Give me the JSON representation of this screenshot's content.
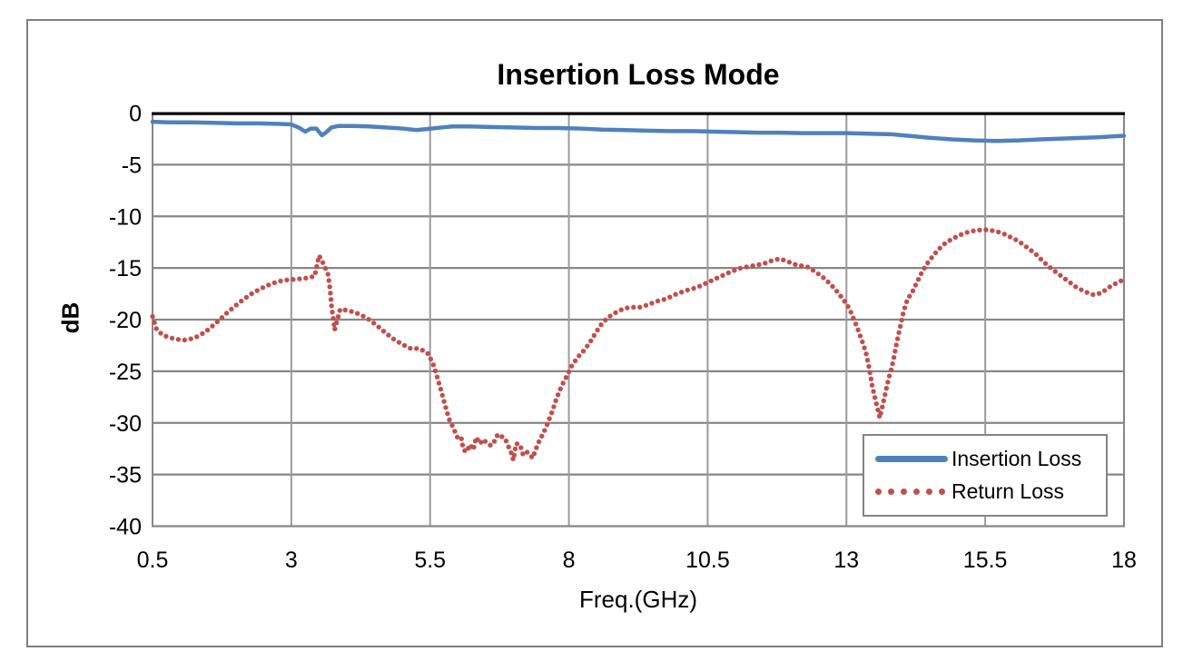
{
  "figure": {
    "background": "#ffffff",
    "frame_border_color": "#7f7f7f"
  },
  "chart_data": {
    "type": "line",
    "title": "Insertion Loss Mode",
    "xlabel": "Freq.(GHz)",
    "ylabel": "dB",
    "xlim": [
      0.5,
      18
    ],
    "ylim": [
      -40,
      0
    ],
    "x_ticks": [
      0.5,
      3,
      5.5,
      8,
      10.5,
      13,
      15.5,
      18
    ],
    "y_ticks": [
      0,
      -5,
      -10,
      -15,
      -20,
      -25,
      -30,
      -35,
      -40
    ],
    "grid": true,
    "legend_position": "bottom-right",
    "colors": {
      "gridline": "#878787",
      "vertical_gridline": "#9b9b9b",
      "plot_border": "#878787",
      "zero_axis": "#000000"
    },
    "series": [
      {
        "name": "Insertion Loss",
        "style": "solid",
        "color": "#4F81BD",
        "points": [
          [
            0.5,
            -0.85
          ],
          [
            0.8,
            -0.9
          ],
          [
            1.2,
            -0.9
          ],
          [
            1.6,
            -0.95
          ],
          [
            2.0,
            -1.0
          ],
          [
            2.4,
            -1.0
          ],
          [
            2.8,
            -1.05
          ],
          [
            3.0,
            -1.1
          ],
          [
            3.15,
            -1.45
          ],
          [
            3.25,
            -1.8
          ],
          [
            3.35,
            -1.5
          ],
          [
            3.45,
            -1.5
          ],
          [
            3.55,
            -2.15
          ],
          [
            3.62,
            -1.9
          ],
          [
            3.72,
            -1.4
          ],
          [
            3.85,
            -1.25
          ],
          [
            4.1,
            -1.25
          ],
          [
            4.4,
            -1.3
          ],
          [
            4.7,
            -1.4
          ],
          [
            5.0,
            -1.5
          ],
          [
            5.25,
            -1.65
          ],
          [
            5.45,
            -1.55
          ],
          [
            5.7,
            -1.4
          ],
          [
            5.9,
            -1.3
          ],
          [
            6.2,
            -1.3
          ],
          [
            6.6,
            -1.35
          ],
          [
            7.0,
            -1.4
          ],
          [
            7.4,
            -1.45
          ],
          [
            7.8,
            -1.45
          ],
          [
            8.2,
            -1.5
          ],
          [
            8.6,
            -1.6
          ],
          [
            9.0,
            -1.65
          ],
          [
            9.4,
            -1.7
          ],
          [
            9.8,
            -1.75
          ],
          [
            10.2,
            -1.75
          ],
          [
            10.6,
            -1.8
          ],
          [
            11.0,
            -1.85
          ],
          [
            11.4,
            -1.9
          ],
          [
            11.8,
            -1.9
          ],
          [
            12.2,
            -1.95
          ],
          [
            12.6,
            -1.95
          ],
          [
            13.0,
            -1.95
          ],
          [
            13.4,
            -2.0
          ],
          [
            13.8,
            -2.05
          ],
          [
            14.1,
            -2.2
          ],
          [
            14.5,
            -2.4
          ],
          [
            14.9,
            -2.55
          ],
          [
            15.3,
            -2.65
          ],
          [
            15.7,
            -2.7
          ],
          [
            16.1,
            -2.65
          ],
          [
            16.5,
            -2.55
          ],
          [
            17.0,
            -2.45
          ],
          [
            17.5,
            -2.35
          ],
          [
            18.0,
            -2.2
          ]
        ]
      },
      {
        "name": "Return Loss",
        "style": "dotted",
        "color": "#C0504D",
        "points": [
          [
            0.5,
            -19.7
          ],
          [
            0.57,
            -20.9
          ],
          [
            0.68,
            -21.5
          ],
          [
            0.85,
            -21.8
          ],
          [
            1.05,
            -22.0
          ],
          [
            1.25,
            -21.8
          ],
          [
            1.45,
            -21.2
          ],
          [
            1.65,
            -20.3
          ],
          [
            1.85,
            -19.3
          ],
          [
            2.05,
            -18.4
          ],
          [
            2.25,
            -17.6
          ],
          [
            2.45,
            -17.0
          ],
          [
            2.65,
            -16.5
          ],
          [
            2.85,
            -16.2
          ],
          [
            3.05,
            -16.1
          ],
          [
            3.25,
            -16.0
          ],
          [
            3.42,
            -15.8
          ],
          [
            3.5,
            -13.8
          ],
          [
            3.58,
            -14.6
          ],
          [
            3.66,
            -15.6
          ],
          [
            3.69,
            -16.7
          ],
          [
            3.71,
            -17.8
          ],
          [
            3.73,
            -19.0
          ],
          [
            3.76,
            -20.0
          ],
          [
            3.78,
            -21.0
          ],
          [
            3.88,
            -19.0
          ],
          [
            4.0,
            -19.1
          ],
          [
            4.15,
            -19.3
          ],
          [
            4.35,
            -19.8
          ],
          [
            4.55,
            -20.6
          ],
          [
            4.7,
            -21.3
          ],
          [
            4.85,
            -21.9
          ],
          [
            5.0,
            -22.4
          ],
          [
            5.15,
            -22.8
          ],
          [
            5.3,
            -22.8
          ],
          [
            5.45,
            -23.2
          ],
          [
            5.55,
            -24.2
          ],
          [
            5.63,
            -25.6
          ],
          [
            5.7,
            -26.9
          ],
          [
            5.76,
            -28.1
          ],
          [
            5.84,
            -29.6
          ],
          [
            5.92,
            -30.5
          ],
          [
            6.0,
            -31.5
          ],
          [
            6.06,
            -31.4
          ],
          [
            6.1,
            -32.6
          ],
          [
            6.16,
            -32.8
          ],
          [
            6.22,
            -32.1
          ],
          [
            6.28,
            -32.6
          ],
          [
            6.33,
            -31.4
          ],
          [
            6.4,
            -32.0
          ],
          [
            6.46,
            -31.6
          ],
          [
            6.53,
            -32.0
          ],
          [
            6.6,
            -32.2
          ],
          [
            6.67,
            -31.7
          ],
          [
            6.72,
            -31.1
          ],
          [
            6.78,
            -31.3
          ],
          [
            6.85,
            -31.5
          ],
          [
            6.92,
            -32.4
          ],
          [
            6.97,
            -33.0
          ],
          [
            7.0,
            -33.6
          ],
          [
            7.05,
            -32.0
          ],
          [
            7.12,
            -32.1
          ],
          [
            7.17,
            -33.0
          ],
          [
            7.22,
            -32.7
          ],
          [
            7.28,
            -33.0
          ],
          [
            7.35,
            -33.4
          ],
          [
            7.4,
            -32.6
          ],
          [
            7.47,
            -31.7
          ],
          [
            7.54,
            -31.0
          ],
          [
            7.62,
            -30.0
          ],
          [
            7.7,
            -28.9
          ],
          [
            7.78,
            -27.6
          ],
          [
            7.87,
            -26.4
          ],
          [
            7.96,
            -25.5
          ],
          [
            8.05,
            -24.5
          ],
          [
            8.15,
            -23.7
          ],
          [
            8.27,
            -23.0
          ],
          [
            8.38,
            -22.2
          ],
          [
            8.48,
            -21.3
          ],
          [
            8.58,
            -20.5
          ],
          [
            8.7,
            -19.8
          ],
          [
            8.85,
            -19.3
          ],
          [
            9.0,
            -18.9
          ],
          [
            9.15,
            -18.8
          ],
          [
            9.3,
            -18.8
          ],
          [
            9.45,
            -18.5
          ],
          [
            9.6,
            -18.2
          ],
          [
            9.75,
            -18.0
          ],
          [
            9.9,
            -17.6
          ],
          [
            10.1,
            -17.2
          ],
          [
            10.3,
            -16.9
          ],
          [
            10.5,
            -16.4
          ],
          [
            10.7,
            -15.9
          ],
          [
            10.9,
            -15.4
          ],
          [
            11.1,
            -15.0
          ],
          [
            11.3,
            -14.8
          ],
          [
            11.5,
            -14.6
          ],
          [
            11.65,
            -14.3
          ],
          [
            11.8,
            -14.1
          ],
          [
            11.95,
            -14.4
          ],
          [
            12.1,
            -14.7
          ],
          [
            12.3,
            -14.9
          ],
          [
            12.45,
            -15.4
          ],
          [
            12.6,
            -16.0
          ],
          [
            12.72,
            -16.6
          ],
          [
            12.85,
            -17.4
          ],
          [
            12.95,
            -18.1
          ],
          [
            13.05,
            -18.9
          ],
          [
            13.12,
            -19.8
          ],
          [
            13.19,
            -20.7
          ],
          [
            13.25,
            -21.6
          ],
          [
            13.31,
            -22.5
          ],
          [
            13.36,
            -23.4
          ],
          [
            13.41,
            -24.7
          ],
          [
            13.46,
            -26.3
          ],
          [
            13.51,
            -27.5
          ],
          [
            13.56,
            -28.6
          ],
          [
            13.6,
            -29.5
          ],
          [
            13.66,
            -28.1
          ],
          [
            13.71,
            -26.9
          ],
          [
            13.76,
            -25.7
          ],
          [
            13.81,
            -24.8
          ],
          [
            13.85,
            -23.8
          ],
          [
            13.9,
            -22.4
          ],
          [
            13.96,
            -20.9
          ],
          [
            14.03,
            -19.2
          ],
          [
            14.1,
            -18.0
          ],
          [
            14.18,
            -17.4
          ],
          [
            14.27,
            -16.4
          ],
          [
            14.36,
            -15.4
          ],
          [
            14.45,
            -14.6
          ],
          [
            14.55,
            -13.9
          ],
          [
            14.66,
            -13.2
          ],
          [
            14.78,
            -12.6
          ],
          [
            14.9,
            -12.2
          ],
          [
            15.05,
            -11.8
          ],
          [
            15.2,
            -11.5
          ],
          [
            15.35,
            -11.35
          ],
          [
            15.5,
            -11.3
          ],
          [
            15.65,
            -11.4
          ],
          [
            15.8,
            -11.6
          ],
          [
            15.95,
            -12.0
          ],
          [
            16.1,
            -12.4
          ],
          [
            16.25,
            -13.0
          ],
          [
            16.4,
            -13.6
          ],
          [
            16.55,
            -14.4
          ],
          [
            16.7,
            -15.1
          ],
          [
            16.85,
            -15.7
          ],
          [
            17.0,
            -16.3
          ],
          [
            17.15,
            -16.9
          ],
          [
            17.3,
            -17.3
          ],
          [
            17.45,
            -17.6
          ],
          [
            17.6,
            -17.4
          ],
          [
            17.72,
            -16.9
          ],
          [
            17.85,
            -16.5
          ],
          [
            18.0,
            -16.1
          ]
        ]
      }
    ]
  }
}
